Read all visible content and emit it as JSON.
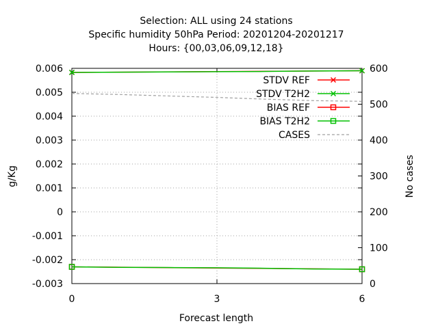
{
  "chart_data": {
    "type": "line",
    "title_lines": [
      "Selection: ALL using    24 stations",
      "Specific humidity 50hPa   Period: 20201204-20201217",
      "Hours: {00,03,06,09,12,18}"
    ],
    "xlabel": "Forecast length",
    "ylabel": "g/Kg",
    "y2label": "No cases",
    "xlim": [
      0,
      6
    ],
    "ylim": [
      -0.003,
      0.006
    ],
    "y2lim": [
      0,
      600
    ],
    "xticks": [
      "0",
      "3",
      "6"
    ],
    "xtick_values": [
      0,
      3,
      6
    ],
    "yticks": [
      "-0.003",
      "-0.002",
      "-0.001",
      "0",
      "0.001",
      "0.002",
      "0.003",
      "0.004",
      "0.005",
      "0.006"
    ],
    "ytick_values": [
      -0.003,
      -0.002,
      -0.001,
      0,
      0.001,
      0.002,
      0.003,
      0.004,
      0.005,
      0.006
    ],
    "y2ticks": [
      "0",
      "100",
      "200",
      "300",
      "400",
      "500",
      "600"
    ],
    "y2tick_values": [
      0,
      100,
      200,
      300,
      400,
      500,
      600
    ],
    "grid": true,
    "legend_position": "top-right",
    "series": [
      {
        "name": "STDV REF",
        "axis": "y",
        "color": "#ff0000",
        "marker": "x",
        "x": [
          0,
          6
        ],
        "values": [
          0.00583,
          0.0059
        ]
      },
      {
        "name": "STDV T2H2",
        "axis": "y",
        "color": "#00c000",
        "marker": "x",
        "x": [
          0,
          1,
          2,
          3,
          4,
          5,
          6
        ],
        "values": [
          0.00583,
          0.00584,
          0.00585,
          0.00586,
          0.00587,
          0.00589,
          0.0059
        ]
      },
      {
        "name": "BIAS REF",
        "axis": "y",
        "color": "#ff0000",
        "marker": "square",
        "x": [
          0,
          6
        ],
        "values": [
          -0.0023,
          -0.0024
        ]
      },
      {
        "name": "BIAS T2H2",
        "axis": "y",
        "color": "#00c000",
        "marker": "square",
        "x": [
          0,
          1,
          2,
          3,
          4,
          5,
          6
        ],
        "values": [
          -0.0023,
          -0.00232,
          -0.00233,
          -0.00234,
          -0.00236,
          -0.00239,
          -0.0024
        ]
      },
      {
        "name": "CASES",
        "axis": "y2",
        "color": "#a0a0a0",
        "marker": "none",
        "dashed": true,
        "x": [
          0,
          1,
          2,
          3,
          4,
          5,
          6
        ],
        "values": [
          530,
          527,
          523,
          519,
          514,
          510,
          508
        ]
      }
    ]
  }
}
